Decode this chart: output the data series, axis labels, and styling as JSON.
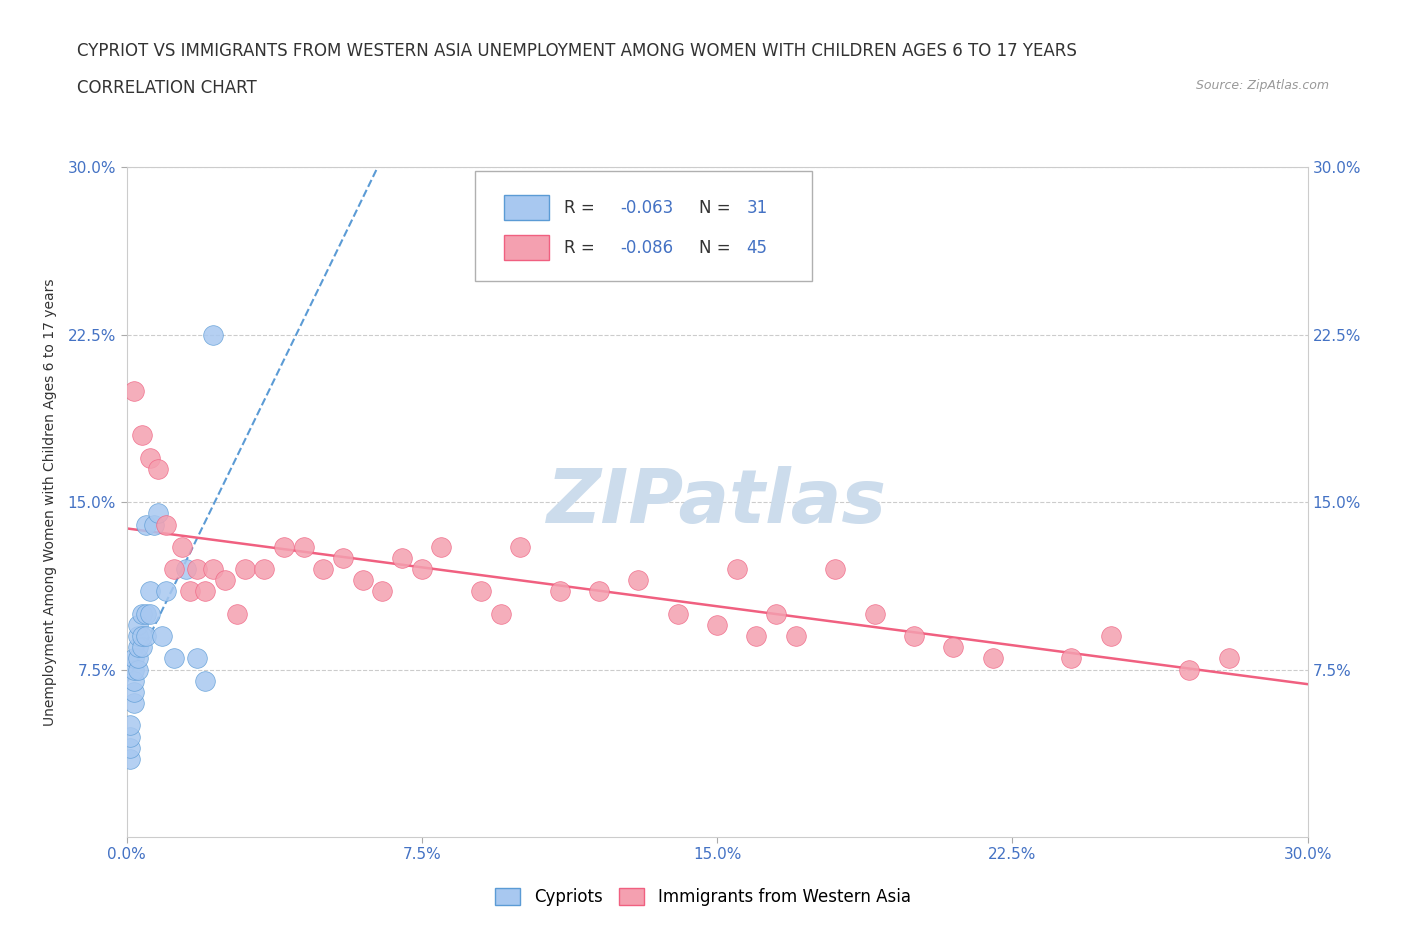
{
  "title_line1": "CYPRIOT VS IMMIGRANTS FROM WESTERN ASIA UNEMPLOYMENT AMONG WOMEN WITH CHILDREN AGES 6 TO 17 YEARS",
  "title_line2": "CORRELATION CHART",
  "source_text": "Source: ZipAtlas.com",
  "ylabel": "Unemployment Among Women with Children Ages 6 to 17 years",
  "xlim": [
    0.0,
    0.3
  ],
  "ylim": [
    0.0,
    0.3
  ],
  "xtick_labels": [
    "0.0%",
    "7.5%",
    "15.0%",
    "22.5%",
    "30.0%"
  ],
  "xtick_vals": [
    0.0,
    0.075,
    0.15,
    0.225,
    0.3
  ],
  "ytick_labels": [
    "7.5%",
    "15.0%",
    "22.5%",
    "30.0%"
  ],
  "ytick_vals": [
    0.075,
    0.15,
    0.225,
    0.3
  ],
  "cypriot_color": "#a8c8f0",
  "immigrant_color": "#f4a0b0",
  "trendline_cypriot_color": "#5b9bd5",
  "trendline_immigrant_color": "#f06080",
  "watermark_color": "#ccdcec",
  "grid_color": "#cccccc",
  "background_color": "#ffffff",
  "cypriot_x": [
    0.001,
    0.001,
    0.001,
    0.001,
    0.002,
    0.002,
    0.002,
    0.002,
    0.002,
    0.003,
    0.003,
    0.003,
    0.003,
    0.003,
    0.004,
    0.004,
    0.004,
    0.005,
    0.005,
    0.005,
    0.006,
    0.006,
    0.007,
    0.008,
    0.009,
    0.01,
    0.012,
    0.015,
    0.018,
    0.02,
    0.022
  ],
  "cypriot_y": [
    0.035,
    0.04,
    0.045,
    0.05,
    0.06,
    0.065,
    0.07,
    0.075,
    0.08,
    0.075,
    0.08,
    0.085,
    0.09,
    0.095,
    0.085,
    0.09,
    0.1,
    0.09,
    0.1,
    0.14,
    0.1,
    0.11,
    0.14,
    0.145,
    0.09,
    0.11,
    0.08,
    0.12,
    0.08,
    0.07,
    0.225
  ],
  "immigrant_x": [
    0.002,
    0.004,
    0.006,
    0.008,
    0.01,
    0.012,
    0.014,
    0.016,
    0.018,
    0.02,
    0.022,
    0.025,
    0.028,
    0.03,
    0.035,
    0.04,
    0.045,
    0.05,
    0.055,
    0.06,
    0.065,
    0.07,
    0.075,
    0.08,
    0.09,
    0.095,
    0.1,
    0.11,
    0.12,
    0.13,
    0.14,
    0.15,
    0.155,
    0.16,
    0.165,
    0.17,
    0.18,
    0.19,
    0.2,
    0.21,
    0.22,
    0.24,
    0.25,
    0.27,
    0.28
  ],
  "immigrant_y": [
    0.2,
    0.18,
    0.17,
    0.165,
    0.14,
    0.12,
    0.13,
    0.11,
    0.12,
    0.11,
    0.12,
    0.115,
    0.1,
    0.12,
    0.12,
    0.13,
    0.13,
    0.12,
    0.125,
    0.115,
    0.11,
    0.125,
    0.12,
    0.13,
    0.11,
    0.1,
    0.13,
    0.11,
    0.11,
    0.115,
    0.1,
    0.095,
    0.12,
    0.09,
    0.1,
    0.09,
    0.12,
    0.1,
    0.09,
    0.085,
    0.08,
    0.08,
    0.09,
    0.075,
    0.08
  ]
}
